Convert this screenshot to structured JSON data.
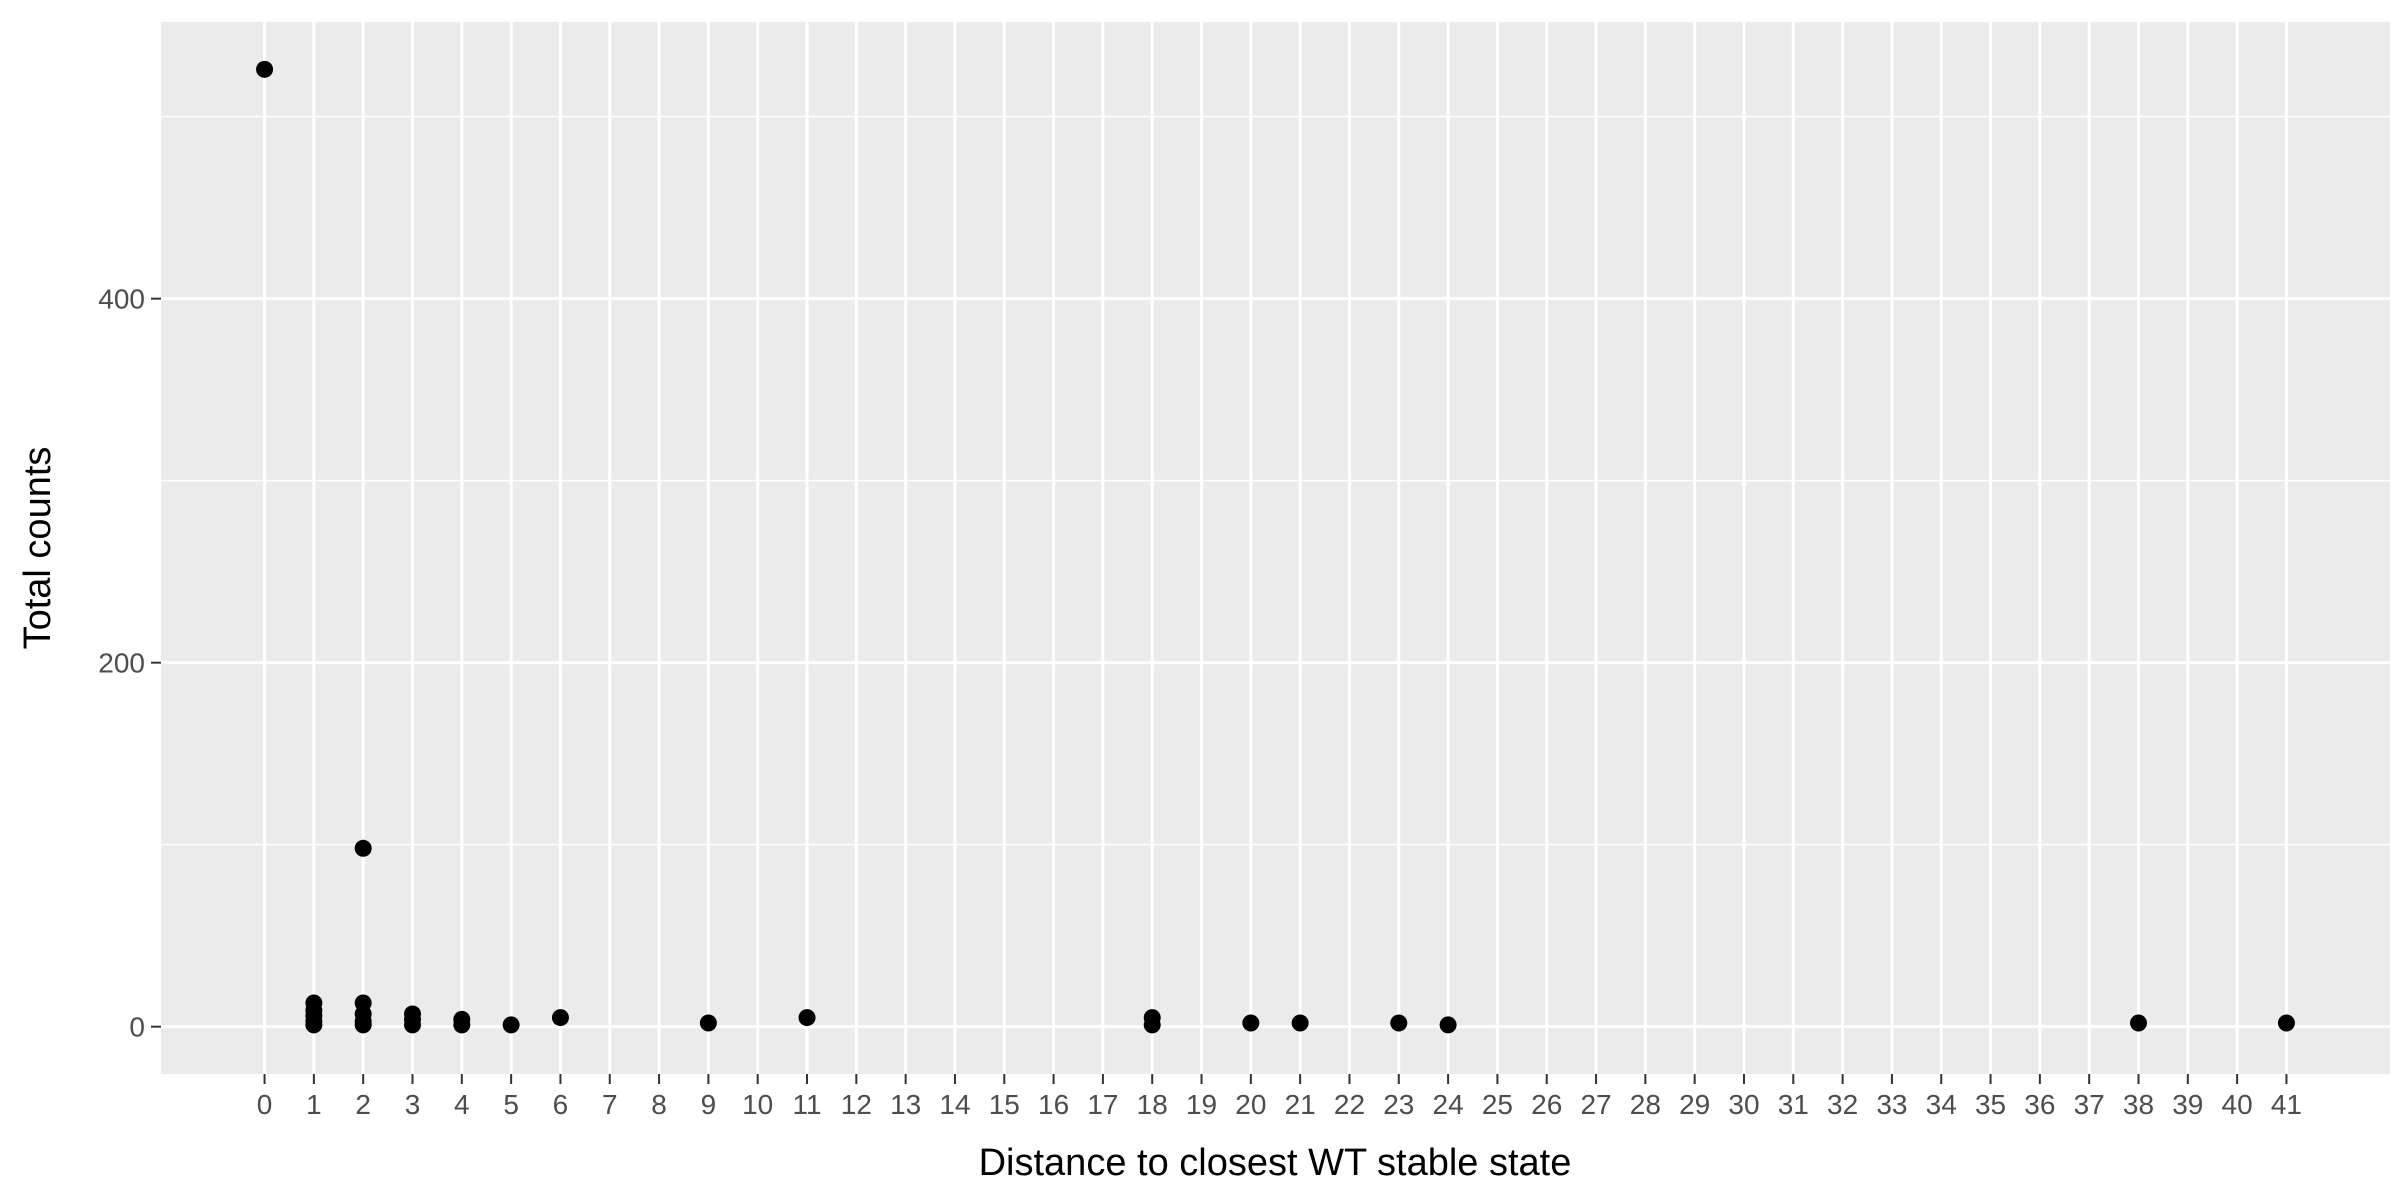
{
  "chart_data": {
    "type": "scatter",
    "title": "",
    "xlabel": "Distance to closest WT stable state",
    "ylabel": "Total counts",
    "xlim": [
      -2.1,
      43.1
    ],
    "ylim": [
      -26,
      552
    ],
    "x_ticks": [
      0,
      1,
      2,
      3,
      4,
      5,
      6,
      7,
      8,
      9,
      10,
      11,
      12,
      13,
      14,
      15,
      16,
      17,
      18,
      19,
      20,
      21,
      22,
      23,
      24,
      25,
      26,
      27,
      28,
      29,
      30,
      31,
      32,
      33,
      34,
      35,
      36,
      37,
      38,
      39,
      40,
      41
    ],
    "y_ticks": [
      0,
      200,
      400
    ],
    "y_minor_ticks": [
      100,
      300,
      500
    ],
    "grid": true,
    "legend": "none",
    "point_color": "#000000",
    "panel_color": "#ebebeb",
    "grid_color": "#ffffff",
    "points": [
      {
        "x": 0,
        "y": 526
      },
      {
        "x": 1,
        "y": 13
      },
      {
        "x": 1,
        "y": 9
      },
      {
        "x": 1,
        "y": 6
      },
      {
        "x": 1,
        "y": 3
      },
      {
        "x": 1,
        "y": 1
      },
      {
        "x": 2,
        "y": 98
      },
      {
        "x": 2,
        "y": 13
      },
      {
        "x": 2,
        "y": 7
      },
      {
        "x": 2,
        "y": 3
      },
      {
        "x": 2,
        "y": 1
      },
      {
        "x": 3,
        "y": 7
      },
      {
        "x": 3,
        "y": 4
      },
      {
        "x": 3,
        "y": 1
      },
      {
        "x": 4,
        "y": 4
      },
      {
        "x": 4,
        "y": 1
      },
      {
        "x": 5,
        "y": 1
      },
      {
        "x": 6,
        "y": 5
      },
      {
        "x": 9,
        "y": 2
      },
      {
        "x": 11,
        "y": 5
      },
      {
        "x": 18,
        "y": 5
      },
      {
        "x": 18,
        "y": 1
      },
      {
        "x": 20,
        "y": 2
      },
      {
        "x": 21,
        "y": 2
      },
      {
        "x": 23,
        "y": 2
      },
      {
        "x": 24,
        "y": 1
      },
      {
        "x": 38,
        "y": 2
      },
      {
        "x": 41,
        "y": 2
      }
    ]
  }
}
